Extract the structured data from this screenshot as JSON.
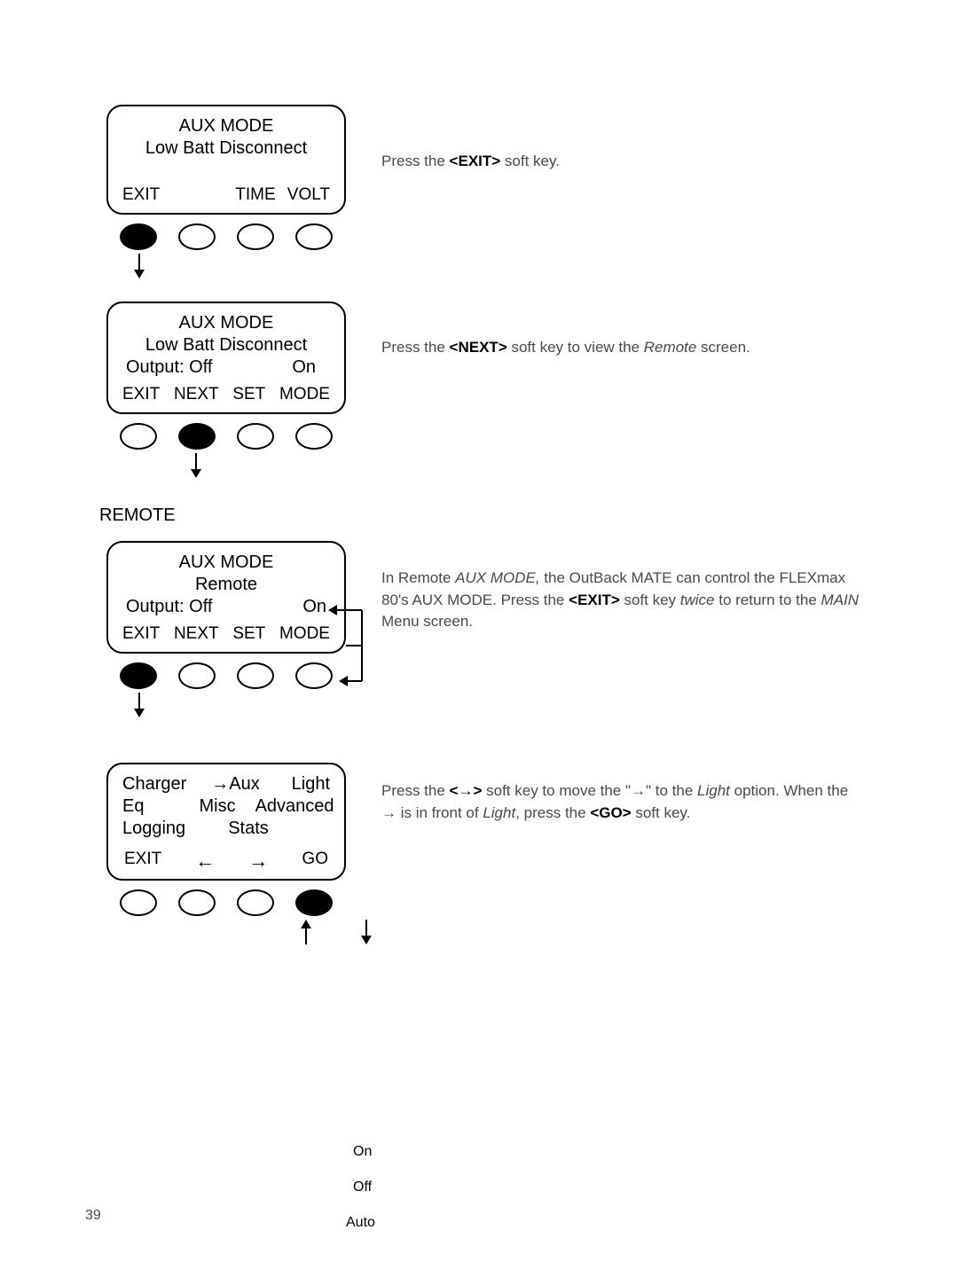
{
  "page_number": "39",
  "section_label": "REMOTE",
  "screen1": {
    "title": "AUX MODE",
    "subtitle": "Low Batt Disconnect",
    "btn1": "EXIT",
    "btn2": "",
    "btn3": "TIME",
    "btn4": "VOLT",
    "pressed_index": 0
  },
  "instr1_html": "Press the <strong>&lt;EXIT&gt;</strong> soft key.",
  "screen2": {
    "title": "AUX MODE",
    "subtitle": "Low Batt Disconnect",
    "state_left": "Output: Off",
    "state_right": "On",
    "btn1": "EXIT",
    "btn2": "NEXT",
    "btn3": "SET",
    "btn4": "MODE",
    "pressed_index": 1
  },
  "instr2_html": "Press the <strong>&lt;NEXT&gt;</strong> soft key to view the <em>Remote</em> screen.",
  "screen3": {
    "title": "AUX MODE",
    "subtitle": "Remote",
    "state_left": "Output: Off",
    "state_right": "On",
    "btn1": "EXIT",
    "btn2": "NEXT",
    "btn3": "SET",
    "btn4": "MODE",
    "pressed_index": 0,
    "side_options": [
      "On",
      "Off",
      "Auto"
    ]
  },
  "instr3_html": "In Remote <em>AUX MODE,</em> the OutBack MATE can control the FLEXmax 80's  AUX MODE. Press the <strong>&lt;EXIT&gt;</strong> soft key <em>twice</em> to return to the <em>MAIN</em> Menu screen.",
  "screen4": {
    "row1": [
      "Charger",
      "→Aux",
      "Light"
    ],
    "row2": [
      "Eq",
      "Misc",
      "Advanced"
    ],
    "row3": [
      "Logging",
      "Stats"
    ],
    "btn1": "EXIT",
    "btn2": "←",
    "btn3": "→",
    "btn4": "GO",
    "pressed_index": 3
  },
  "instr4_html": "Press the <strong>&lt;→&gt;</strong> soft key to move the \"→\" to the <em>Light</em> option. When the → is in front of <em>Light</em>, press the <strong>&lt;GO&gt;</strong> soft key.",
  "colors": {
    "text_gray": "#4a4a4a",
    "black": "#000000",
    "bg": "#ffffff"
  }
}
